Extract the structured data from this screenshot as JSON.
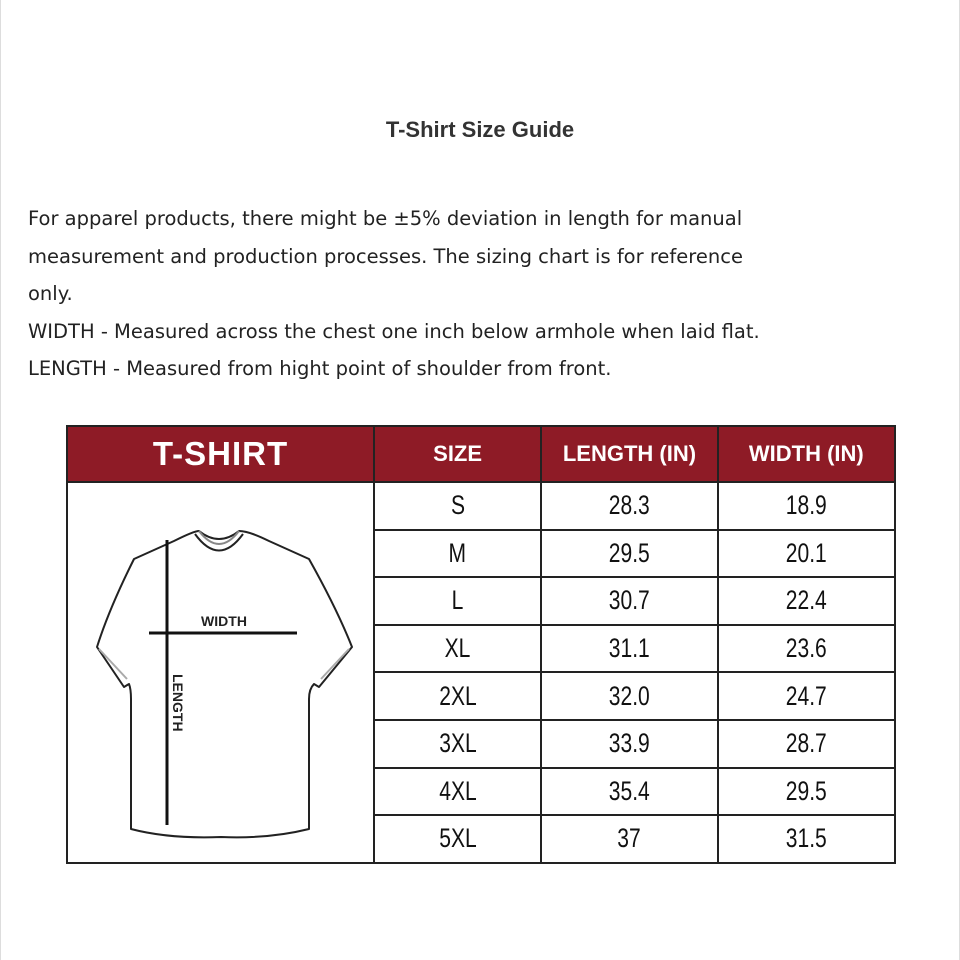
{
  "title": "T-Shirt Size Guide",
  "description": [
    "For apparel products, there might be ±5% deviation in length for manual",
    "measurement and production processes. The sizing chart is for reference",
    "only.",
    "WIDTH - Measured across the chest one inch below armhole when laid flat.",
    "LENGTH - Measured from hight point of shoulder from front."
  ],
  "table": {
    "headers": [
      "T-SHIRT",
      "SIZE",
      "LENGTH (IN)",
      "WIDTH (IN)"
    ],
    "header_color": "#8e1b26",
    "diagram": {
      "width_label": "WIDTH",
      "length_label": "LENGTH"
    },
    "rows": [
      {
        "size": "S",
        "length": "28.3",
        "width": "18.9"
      },
      {
        "size": "M",
        "length": "29.5",
        "width": "20.1"
      },
      {
        "size": "L",
        "length": "30.7",
        "width": "22.4"
      },
      {
        "size": "XL",
        "length": "31.1",
        "width": "23.6"
      },
      {
        "size": "2XL",
        "length": "32.0",
        "width": "24.7"
      },
      {
        "size": "3XL",
        "length": "33.9",
        "width": "28.7"
      },
      {
        "size": "4XL",
        "length": "35.4",
        "width": "29.5"
      },
      {
        "size": "5XL",
        "length": "37",
        "width": "31.5"
      }
    ]
  }
}
